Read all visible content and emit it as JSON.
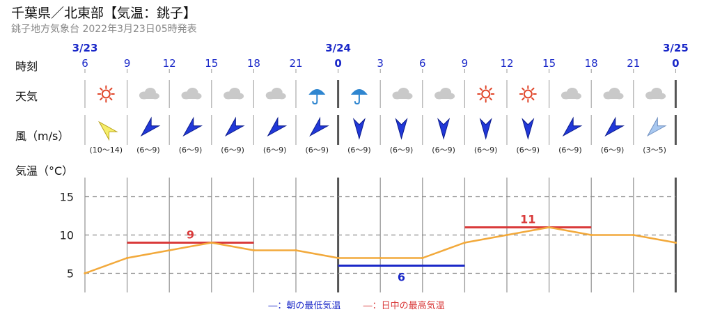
{
  "header": {
    "title": "千葉県／北東部【気温：銚子】",
    "subtitle": "銚子地方気象台 2022年3月23日05時発表"
  },
  "rows": {
    "time": "時刻",
    "weather": "天気",
    "wind": "風（m/s）",
    "temp": "気温（°C）"
  },
  "colors": {
    "temp_line": "#f2a93b",
    "min_line": "#1a28c8",
    "max_line": "#d93a3a",
    "date_label": "#1a28c8",
    "sun": "#e0462a",
    "cloud": "#c9c9c9",
    "rain": "#2f86d0"
  },
  "slots": [
    {
      "date": "3/23",
      "hour": "6",
      "weather": "sun-icon",
      "wind_dir": "sw",
      "wind_range": "(10〜14)",
      "wind_class": "strong"
    },
    {
      "date": "",
      "hour": "9",
      "weather": "cloud-icon",
      "wind_dir": "nw",
      "wind_range": "(6〜9)",
      "wind_class": "mid"
    },
    {
      "date": "",
      "hour": "12",
      "weather": "cloud-icon",
      "wind_dir": "nw",
      "wind_range": "(6〜9)",
      "wind_class": "mid"
    },
    {
      "date": "",
      "hour": "15",
      "weather": "cloud-icon",
      "wind_dir": "nw",
      "wind_range": "(6〜9)",
      "wind_class": "mid"
    },
    {
      "date": "",
      "hour": "18",
      "weather": "cloud-icon",
      "wind_dir": "nw",
      "wind_range": "(6〜9)",
      "wind_class": "mid"
    },
    {
      "date": "",
      "hour": "21",
      "weather": "rain-icon",
      "wind_dir": "nw",
      "wind_range": "(6〜9)",
      "wind_class": "mid"
    },
    {
      "date": "3/24",
      "hour": "0",
      "weather": "rain-icon",
      "wind_dir": "n",
      "wind_range": "(6〜9)",
      "wind_class": "mid"
    },
    {
      "date": "",
      "hour": "3",
      "weather": "cloud-icon",
      "wind_dir": "n",
      "wind_range": "(6〜9)",
      "wind_class": "mid"
    },
    {
      "date": "",
      "hour": "6",
      "weather": "cloud-icon",
      "wind_dir": "n",
      "wind_range": "(6〜9)",
      "wind_class": "mid"
    },
    {
      "date": "",
      "hour": "9",
      "weather": "sun-icon",
      "wind_dir": "n",
      "wind_range": "(6〜9)",
      "wind_class": "mid"
    },
    {
      "date": "",
      "hour": "12",
      "weather": "sun-icon",
      "wind_dir": "n",
      "wind_range": "(6〜9)",
      "wind_class": "mid"
    },
    {
      "date": "",
      "hour": "15",
      "weather": "cloud-icon",
      "wind_dir": "nw",
      "wind_range": "(6〜9)",
      "wind_class": "mid"
    },
    {
      "date": "",
      "hour": "18",
      "weather": "cloud-icon",
      "wind_dir": "nw",
      "wind_range": "(6〜9)",
      "wind_class": "mid"
    },
    {
      "date": "",
      "hour": "21",
      "weather": "cloud-icon",
      "wind_dir": "nw",
      "wind_range": "(3〜5)",
      "wind_class": "light"
    },
    {
      "date": "3/25",
      "hour": "0",
      "weather": "",
      "wind_dir": "",
      "wind_range": "",
      "wind_class": ""
    }
  ],
  "chart_data": {
    "type": "line",
    "title": "",
    "xlabel": "",
    "ylabel": "気温（°C）",
    "ylim": [
      2.5,
      17.5
    ],
    "yticks": [
      5,
      10,
      15
    ],
    "grid": true,
    "x": [
      "3/23 6",
      "3/23 9",
      "3/23 12",
      "3/23 15",
      "3/23 18",
      "3/23 21",
      "3/24 0",
      "3/24 3",
      "3/24 6",
      "3/24 9",
      "3/24 12",
      "3/24 15",
      "3/24 18",
      "3/24 21",
      "3/25 0"
    ],
    "series": [
      {
        "values": [
          5,
          7,
          8,
          9,
          8,
          8,
          7,
          7,
          7,
          9,
          10,
          11,
          10,
          10,
          9
        ]
      }
    ],
    "extremes": [
      {
        "kind": "max",
        "value": 9,
        "label": "9",
        "from": "3/23 9",
        "to": "3/23 18"
      },
      {
        "kind": "min",
        "value": 6,
        "label": "6",
        "from": "3/24 0",
        "to": "3/24 9"
      },
      {
        "kind": "max",
        "value": 11,
        "label": "11",
        "from": "3/24 9",
        "to": "3/24 18"
      }
    ],
    "legend": {
      "placement": "bottom",
      "min_label": "朝の最低気温",
      "max_label": "日中の最高気温",
      "min_marker": "―：",
      "max_marker": "―："
    }
  }
}
